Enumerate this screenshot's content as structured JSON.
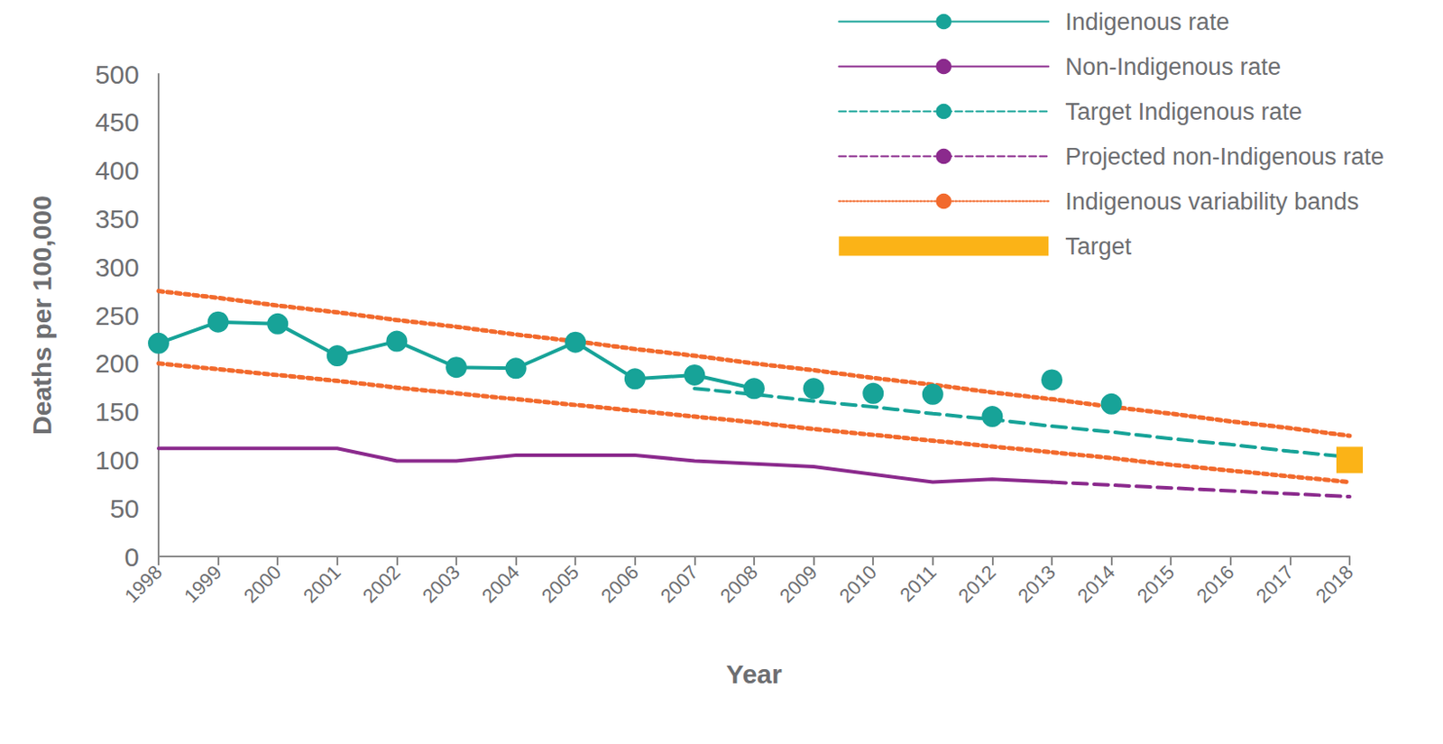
{
  "chart_data": {
    "type": "line",
    "x_label": "Year",
    "y_label": "Deaths per 100,000",
    "categories": [
      "1998",
      "1999",
      "2000",
      "2001",
      "2002",
      "2003",
      "2004",
      "2005",
      "2006",
      "2007",
      "2008",
      "2009",
      "2010",
      "2011",
      "2012",
      "2013",
      "2014",
      "2015",
      "2016",
      "2017",
      "2018"
    ],
    "ylim": [
      0,
      500
    ],
    "yticks": [
      0,
      50,
      100,
      150,
      200,
      250,
      300,
      350,
      400,
      450,
      500
    ],
    "grid": false,
    "legend": "top-right",
    "series": [
      {
        "name": "Indigenous rate",
        "type": "line",
        "color": "#17a398",
        "marker": "circle",
        "line_style": "solid",
        "values": [
          221,
          243,
          241,
          208,
          223,
          196,
          195,
          222,
          184,
          188,
          174,
          null,
          null,
          null,
          null,
          null,
          null,
          null,
          null,
          null,
          null
        ]
      },
      {
        "name": "Indigenous rate",
        "type": "scatter",
        "color": "#17a398",
        "marker": "circle",
        "values": [
          null,
          null,
          null,
          null,
          null,
          null,
          null,
          null,
          null,
          null,
          null,
          174,
          169,
          168,
          145,
          183,
          158,
          null,
          null,
          null,
          null
        ]
      },
      {
        "name": "Non-Indigenous rate",
        "type": "line",
        "color": "#8b2a8d",
        "marker": "none",
        "line_style": "solid",
        "values": [
          112,
          112,
          112,
          112,
          99,
          99,
          105,
          105,
          105,
          99,
          96,
          93,
          85,
          77,
          80,
          77,
          null,
          null,
          null,
          null,
          null
        ]
      },
      {
        "name": "Target Indigenous rate",
        "type": "line",
        "color": "#17a398",
        "marker": "none",
        "line_style": "dashed",
        "values": [
          null,
          null,
          null,
          null,
          null,
          null,
          null,
          null,
          null,
          174,
          168,
          161,
          155,
          148,
          142,
          135,
          129,
          122,
          116,
          109,
          103
        ]
      },
      {
        "name": "Projected non-Indigenous rate",
        "type": "line",
        "color": "#8b2a8d",
        "marker": "none",
        "line_style": "dashed",
        "values": [
          null,
          null,
          null,
          null,
          null,
          null,
          null,
          null,
          null,
          null,
          null,
          null,
          null,
          null,
          null,
          77,
          74,
          71,
          68,
          65,
          62
        ]
      },
      {
        "name": "Indigenous variability bands",
        "type": "line",
        "color": "#f26a2d",
        "marker": "none",
        "line_style": "dotted",
        "values": [
          275,
          268,
          260,
          253,
          245,
          238,
          230,
          223,
          215,
          208,
          200,
          193,
          185,
          178,
          170,
          163,
          155,
          148,
          140,
          133,
          125
        ]
      },
      {
        "name": "Indigenous variability bands",
        "type": "line",
        "color": "#f26a2d",
        "marker": "none",
        "line_style": "dotted",
        "values": [
          200,
          194,
          188,
          182,
          175,
          169,
          163,
          157,
          151,
          145,
          139,
          132,
          126,
          120,
          114,
          108,
          102,
          95,
          89,
          83,
          77
        ]
      },
      {
        "name": "Target",
        "type": "scatter",
        "color": "#fbb317",
        "marker": "square",
        "values": [
          null,
          null,
          null,
          null,
          null,
          null,
          null,
          null,
          null,
          null,
          null,
          null,
          null,
          null,
          null,
          null,
          null,
          null,
          null,
          null,
          100
        ]
      }
    ]
  }
}
